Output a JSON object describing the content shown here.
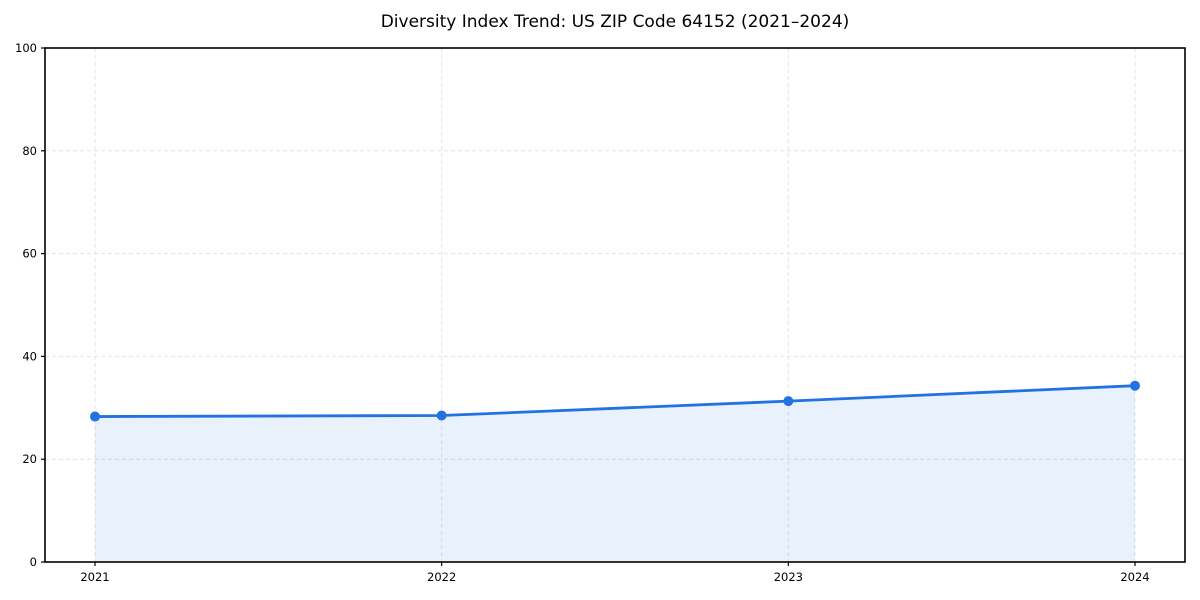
{
  "chart_data": {
    "type": "line",
    "title": "Diversity Index Trend: US ZIP Code 64152 (2021–2024)",
    "categories": [
      "2021",
      "2022",
      "2023",
      "2024"
    ],
    "series": [
      {
        "values": [
          28.3,
          28.5,
          31.3,
          34.3
        ]
      }
    ],
    "xlabel": "",
    "ylabel": "",
    "ylim": [
      0,
      100
    ],
    "yticks": [
      0,
      20,
      40,
      60,
      80,
      100
    ],
    "grid": "dashed",
    "legend": "none",
    "area_fill_to_zero": true,
    "marker": "circle",
    "colors": {
      "line": "#2272e2",
      "fill": "#2272e2",
      "fill_opacity": 0.1,
      "grid": "#e3e3e3",
      "axis": "#000000",
      "text": "#000000",
      "background": "#ffffff"
    }
  }
}
